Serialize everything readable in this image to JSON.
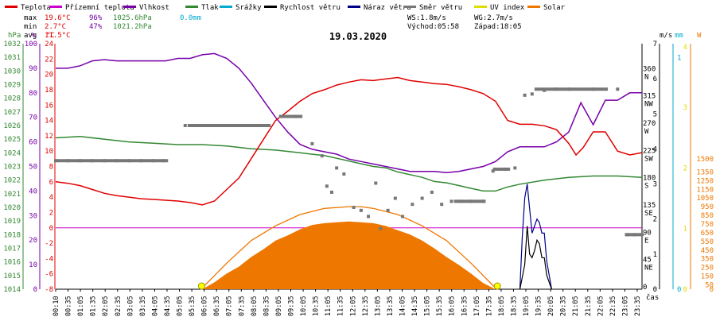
{
  "chart_data": {
    "type": "line",
    "title": "19.03.2020",
    "xlabel": "čas",
    "legend": [
      {
        "name": "Teplota",
        "color": "#e00000"
      },
      {
        "name": "Přízemní teplota",
        "color": "#cc00cc"
      },
      {
        "name": "Vlhkost",
        "color": "#7700aa"
      },
      {
        "name": "Tlak",
        "color": "#338833"
      },
      {
        "name": "Srážky",
        "color": "#00aacc"
      },
      {
        "name": "Rychlost větru",
        "color": "#000000"
      },
      {
        "name": "Náraz větru",
        "color": "#000088"
      },
      {
        "name": "Směr větru",
        "color": "#777777"
      },
      {
        "name": "UV index",
        "color": "#dddd00"
      },
      {
        "name": "Solar",
        "color": "#ee7700"
      }
    ],
    "stats": {
      "max_label": "max",
      "max_temp": "19.6°C",
      "max_hum": "96%",
      "max_press": "1025.6hPa",
      "max_rain": "0.0mm",
      "min_label": "min",
      "min_temp": "2.7°C",
      "min_hum": "47%",
      "min_press": "1021.2hPa",
      "avg_label": "avg",
      "avg_temp": "11.5°C",
      "ws": "WS:1.8m/s",
      "wg": "WG:2.7m/s",
      "sunrise": "Východ:05:58",
      "sunset": "Západ:18:05"
    },
    "axes": {
      "hpa": {
        "unit": "hPa",
        "ticks": [
          "1032",
          "1031",
          "1030",
          "1029",
          "1028",
          "1027",
          "1026",
          "1025",
          "1024",
          "1023",
          "1022",
          "1021",
          "1020",
          "1019",
          "1018",
          "1017",
          "1016",
          "1015",
          "1014"
        ],
        "range": [
          1014,
          1032
        ]
      },
      "percent": {
        "unit": "%",
        "ticks": [
          "100",
          "90",
          "80",
          "70",
          "60",
          "50",
          "40",
          "30",
          "20",
          "10",
          "0"
        ],
        "range": [
          0,
          100
        ]
      },
      "celsius": {
        "unit": "°C",
        "ticks": [
          "24",
          "22",
          "20",
          "18",
          "16",
          "14",
          "12",
          "10",
          "8",
          "6",
          "4",
          "2",
          "0",
          "-2",
          "-4",
          "-6",
          "-8"
        ],
        "range": [
          -8,
          24
        ]
      },
      "ms": {
        "unit": "m/s",
        "ticks": [
          "7",
          "6",
          "5",
          "4",
          "3",
          "2",
          "1",
          "0"
        ],
        "range": [
          0,
          7
        ]
      },
      "mm": {
        "unit": "mm",
        "ticks": [
          "1",
          "0"
        ]
      },
      "uv": {
        "unit": "UV",
        "ticks": [
          "4",
          "3",
          "2",
          "1",
          "0"
        ]
      },
      "solar": {
        "unit": "W",
        "ticks": [
          "1500",
          "1350",
          "1250",
          "1150",
          "1050",
          "950",
          "850",
          "750",
          "650",
          "550",
          "450",
          "350",
          "250",
          "150",
          "50",
          "0"
        ],
        "range": [
          0,
          1500
        ]
      },
      "direction": {
        "ticks": [
          {
            "deg": 360,
            "dir": "N"
          },
          {
            "deg": 315,
            "dir": "NW"
          },
          {
            "deg": 270,
            "dir": "W"
          },
          {
            "deg": 225,
            "dir": "SW"
          },
          {
            "deg": 180,
            "dir": "S"
          },
          {
            "deg": 135,
            "dir": "SE"
          },
          {
            "deg": 90,
            "dir": "E"
          },
          {
            "deg": 45,
            "dir": "NE"
          },
          {
            "deg": 0,
            "dir": ""
          }
        ]
      }
    },
    "x_ticks": [
      "00:10",
      "00:35",
      "01:05",
      "01:35",
      "02:05",
      "02:35",
      "03:05",
      "03:35",
      "04:05",
      "04:35",
      "05:05",
      "05:35",
      "06:05",
      "06:35",
      "07:05",
      "07:35",
      "08:05",
      "08:35",
      "09:05",
      "09:35",
      "10:05",
      "10:35",
      "11:05",
      "11:35",
      "12:05",
      "12:35",
      "13:05",
      "13:35",
      "14:05",
      "14:35",
      "15:05",
      "15:35",
      "16:05",
      "16:35",
      "17:05",
      "17:35",
      "18:05",
      "18:35",
      "19:05",
      "19:35",
      "20:05",
      "20:35",
      "21:05",
      "21:35",
      "22:05",
      "22:35",
      "23:05",
      "23:35"
    ],
    "series": {
      "temperature": {
        "x": [
          0,
          0.5,
          1,
          1.5,
          2,
          2.5,
          3,
          3.5,
          4,
          4.5,
          5,
          5.5,
          6,
          6.5,
          7,
          7.5,
          8,
          8.5,
          9,
          9.5,
          10,
          10.5,
          11,
          11.5,
          12,
          12.5,
          13,
          13.5,
          14,
          14.5,
          15,
          15.5,
          16,
          16.5,
          17,
          17.5,
          18,
          18.5,
          19,
          19.5,
          20,
          20.5,
          21,
          21.3,
          21.6,
          22,
          22.5,
          23,
          23.5,
          24
        ],
        "y": [
          6,
          5.8,
          5.5,
          5,
          4.5,
          4.2,
          4,
          3.8,
          3.7,
          3.6,
          3.5,
          3.3,
          3.0,
          3.5,
          5,
          6.5,
          9,
          11.5,
          14,
          15.2,
          16.5,
          17.5,
          18,
          18.6,
          19,
          19.3,
          19.2,
          19.4,
          19.6,
          19.2,
          19,
          18.8,
          18.7,
          18.4,
          18,
          17.5,
          16.5,
          14,
          13.5,
          13.5,
          13.3,
          12.8,
          11,
          9.5,
          10.5,
          12.5,
          12.5,
          10,
          9.5,
          9.8
        ]
      },
      "humidity": {
        "x": [
          0,
          0.5,
          1,
          1.5,
          2,
          2.5,
          3,
          3.5,
          4,
          4.5,
          5,
          5.5,
          6,
          6.5,
          7,
          7.5,
          8,
          8.5,
          9,
          9.5,
          10,
          10.5,
          11,
          11.5,
          12,
          12.5,
          13,
          13.5,
          14,
          14.5,
          15,
          15.5,
          16,
          16.5,
          17,
          17.5,
          18,
          18.5,
          19,
          19.5,
          20,
          20.5,
          21,
          21.5,
          22,
          22.5,
          23,
          23.5,
          24
        ],
        "y": [
          90,
          90,
          91,
          93,
          93.5,
          93,
          93,
          93,
          93,
          93,
          94,
          94,
          95.5,
          96,
          94,
          90,
          84,
          77,
          70,
          64,
          59,
          57,
          56,
          55,
          53,
          52,
          51,
          50,
          49,
          48,
          48,
          48,
          47.5,
          48,
          49,
          50,
          52,
          56,
          58,
          58,
          58,
          60,
          64,
          76,
          67,
          77,
          77,
          80,
          80
        ]
      },
      "pressure": {
        "x": [
          0,
          1,
          2,
          3,
          4,
          5,
          6,
          7,
          8,
          9,
          10,
          10.5,
          11,
          11.5,
          12,
          12.5,
          13,
          13.5,
          14,
          14.5,
          15,
          15.5,
          16,
          16.5,
          17,
          17.5,
          18,
          18.5,
          19,
          20,
          21,
          22,
          23,
          24
        ],
        "y": [
          1025.1,
          1025.2,
          1025.0,
          1024.8,
          1024.7,
          1024.6,
          1024.6,
          1024.5,
          1024.3,
          1024.2,
          1024.0,
          1023.9,
          1023.8,
          1023.6,
          1023.4,
          1023.2,
          1023.0,
          1022.9,
          1022.6,
          1022.4,
          1022.2,
          1021.9,
          1021.8,
          1021.6,
          1021.4,
          1021.2,
          1021.2,
          1021.5,
          1021.7,
          1022.0,
          1022.2,
          1022.3,
          1022.3,
          1022.2
        ]
      },
      "wind_gust": {
        "x": [
          19.0,
          19.1,
          19.2,
          19.3,
          19.4,
          19.5,
          19.6,
          19.7,
          19.8,
          19.9,
          20.0,
          20.1,
          20.3
        ],
        "y": [
          0,
          1.5,
          2.6,
          3.0,
          2.3,
          1.6,
          1.8,
          2.0,
          1.9,
          1.6,
          1.6,
          0.8,
          0
        ]
      },
      "wind_speed": {
        "x": [
          19.0,
          19.2,
          19.3,
          19.4,
          19.5,
          19.6,
          19.7,
          19.8,
          19.9,
          20.0,
          20.1,
          20.3
        ],
        "y": [
          0,
          0.7,
          1.8,
          1.0,
          0.9,
          1.1,
          1.4,
          1.3,
          0.9,
          0.9,
          0.4,
          0
        ]
      },
      "wind_direction": {
        "x": [
          0,
          0.5,
          1,
          1.5,
          2,
          2.5,
          3,
          3.5,
          4,
          4.4,
          5.3,
          6,
          6.5,
          7,
          7.5,
          8,
          8.5,
          9.2,
          9.8,
          10.5,
          10.9,
          11.1,
          11.3,
          11.5,
          11.8,
          12.2,
          12.5,
          12.8,
          13.1,
          13.3,
          13.6,
          13.9,
          14.2,
          14.6,
          15,
          15.4,
          15.8,
          16.2,
          16.6,
          17,
          17.5,
          17.9,
          18.4,
          18.8,
          19.2,
          19.5,
          20,
          20.5,
          21,
          22,
          23,
          23.4,
          23.7,
          24
        ],
        "y": [
          212,
          212,
          212,
          212,
          212,
          212,
          212,
          212,
          212,
          212,
          270,
          270,
          270,
          270,
          270,
          270,
          270,
          285,
          285,
          240,
          220,
          170,
          160,
          200,
          190,
          135,
          130,
          120,
          175,
          100,
          130,
          150,
          120,
          140,
          150,
          160,
          140,
          145,
          145,
          145,
          145,
          195,
          198,
          200,
          320,
          322,
          328,
          330,
          330,
          330,
          330,
          90,
          90,
          90
        ]
      },
      "solar": {
        "x": [
          6.0,
          6.5,
          7,
          7.5,
          8,
          8.5,
          9,
          9.5,
          10,
          10.5,
          11,
          11.5,
          12,
          12.5,
          13,
          13.5,
          14,
          14.5,
          15,
          15.5,
          16,
          16.5,
          17,
          17.5,
          18.0
        ],
        "y": [
          0,
          80,
          180,
          260,
          370,
          460,
          560,
          620,
          690,
          740,
          760,
          770,
          780,
          770,
          760,
          730,
          680,
          630,
          560,
          470,
          370,
          280,
          180,
          70,
          0
        ]
      },
      "solar_theoretical": {
        "x": [
          5.95,
          7,
          8,
          9,
          10,
          11,
          12,
          12.5,
          13,
          14,
          15,
          16,
          17,
          18.05
        ],
        "y": [
          0,
          300,
          560,
          730,
          860,
          930,
          950,
          950,
          930,
          860,
          730,
          560,
          300,
          0
        ]
      }
    }
  }
}
